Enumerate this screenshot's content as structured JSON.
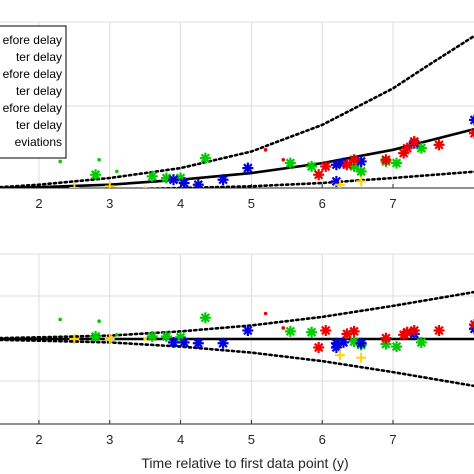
{
  "chart_data": [
    {
      "type": "scatter",
      "title": "",
      "xlabel": "",
      "ylabel": "",
      "xlim": [
        1.45,
        8.2
      ],
      "ylim": [
        0,
        1.0
      ],
      "xticks": [
        2,
        3,
        4,
        5,
        6,
        7
      ],
      "grid": true,
      "legend_position": "top-left (clipped)",
      "legend": [
        "efore delay",
        "ter delay",
        "efore delay",
        "ter delay",
        "efore delay",
        "ter delay",
        "eviations"
      ],
      "series": [
        {
          "color": "#00cc00",
          "marker": "asterisk",
          "points": [
            [
              2.8,
              0.08
            ],
            [
              3.6,
              0.07
            ],
            [
              3.8,
              0.06
            ],
            [
              4.0,
              0.06
            ],
            [
              4.35,
              0.18
            ],
            [
              5.55,
              0.15
            ],
            [
              5.85,
              0.13
            ],
            [
              6.45,
              0.13
            ],
            [
              6.55,
              0.1
            ],
            [
              6.9,
              0.16
            ],
            [
              7.05,
              0.15
            ],
            [
              7.4,
              0.24
            ]
          ]
        },
        {
          "color": "#00cc00",
          "marker": "dot",
          "points": [
            [
              2.3,
              0.16
            ],
            [
              2.85,
              0.17
            ],
            [
              3.1,
              0.1
            ]
          ]
        },
        {
          "color": "#0000dd",
          "marker": "asterisk",
          "points": [
            [
              3.9,
              0.05
            ],
            [
              4.05,
              0.03
            ],
            [
              4.25,
              0.02
            ],
            [
              4.6,
              0.05
            ],
            [
              4.95,
              0.12
            ],
            [
              6.2,
              0.14
            ],
            [
              6.3,
              0.15
            ],
            [
              6.55,
              0.16
            ],
            [
              7.3,
              0.27
            ],
            [
              8.15,
              0.41
            ],
            [
              6.2,
              0.04
            ]
          ]
        },
        {
          "color": "#ee0000",
          "marker": "asterisk",
          "points": [
            [
              6.05,
              0.13
            ],
            [
              6.35,
              0.14
            ],
            [
              6.45,
              0.17
            ],
            [
              6.9,
              0.17
            ],
            [
              7.15,
              0.21
            ],
            [
              7.2,
              0.24
            ],
            [
              7.3,
              0.28
            ],
            [
              7.65,
              0.26
            ],
            [
              8.15,
              0.33
            ],
            [
              5.95,
              0.08
            ]
          ]
        },
        {
          "color": "#ee0000",
          "marker": "dot",
          "points": [
            [
              5.2,
              0.23
            ],
            [
              5.45,
              0.17
            ]
          ]
        },
        {
          "color": "#ffd400",
          "marker": "plus",
          "points": [
            [
              2.5,
              0.0
            ],
            [
              3.0,
              0.01
            ],
            [
              6.25,
              0.02
            ],
            [
              6.55,
              0.04
            ]
          ]
        },
        {
          "color": "#ffd400",
          "marker": "dot",
          "points": [
            [
              3.5,
              0.0
            ]
          ]
        }
      ],
      "lines": [
        {
          "name": "fit",
          "style": "solid",
          "points": [
            [
              1.45,
              0.0
            ],
            [
              2,
              0.005
            ],
            [
              3,
              0.02
            ],
            [
              4,
              0.05
            ],
            [
              5,
              0.09
            ],
            [
              6,
              0.15
            ],
            [
              7,
              0.23
            ],
            [
              8.2,
              0.36
            ]
          ]
        },
        {
          "name": "upper",
          "style": "dotted",
          "points": [
            [
              1.45,
              0.005
            ],
            [
              2,
              0.02
            ],
            [
              3,
              0.06
            ],
            [
              4,
              0.12
            ],
            [
              5,
              0.22
            ],
            [
              6,
              0.38
            ],
            [
              7,
              0.6
            ],
            [
              7.5,
              0.74
            ],
            [
              8.2,
              0.93
            ]
          ]
        },
        {
          "name": "lower",
          "style": "dotted",
          "points": [
            [
              1.45,
              -0.005
            ],
            [
              2,
              -0.01
            ],
            [
              3,
              -0.01
            ],
            [
              4,
              0.0
            ],
            [
              5,
              0.01
            ],
            [
              6,
              0.03
            ],
            [
              7,
              0.06
            ],
            [
              8.2,
              0.1
            ]
          ]
        }
      ]
    },
    {
      "type": "scatter",
      "title": "",
      "xlabel": "Time relative to first data point (y)",
      "ylabel": "",
      "xlim": [
        1.45,
        8.2
      ],
      "ylim": [
        -1.0,
        1.0
      ],
      "xticks": [
        2,
        3,
        4,
        5,
        6,
        7
      ],
      "grid": true,
      "series": [
        {
          "color": "#00cc00",
          "marker": "asterisk",
          "points": [
            [
              2.8,
              0.03
            ],
            [
              3.6,
              0.03
            ],
            [
              3.8,
              0.03
            ],
            [
              4.0,
              0.02
            ],
            [
              4.35,
              0.25
            ],
            [
              5.55,
              0.09
            ],
            [
              5.85,
              0.08
            ],
            [
              6.45,
              -0.03
            ],
            [
              6.55,
              -0.07
            ],
            [
              6.9,
              -0.06
            ],
            [
              7.05,
              -0.09
            ],
            [
              7.4,
              -0.04
            ]
          ]
        },
        {
          "color": "#00cc00",
          "marker": "dot",
          "points": [
            [
              2.3,
              0.23
            ],
            [
              2.85,
              0.21
            ],
            [
              3.1,
              0.05
            ]
          ]
        },
        {
          "color": "#0000dd",
          "marker": "asterisk",
          "points": [
            [
              3.9,
              -0.04
            ],
            [
              4.05,
              -0.04
            ],
            [
              4.25,
              -0.05
            ],
            [
              4.6,
              -0.05
            ],
            [
              4.95,
              0.1
            ],
            [
              6.2,
              -0.05
            ],
            [
              6.3,
              -0.04
            ],
            [
              6.55,
              -0.05
            ],
            [
              7.3,
              0.06
            ],
            [
              8.15,
              0.12
            ],
            [
              6.2,
              -0.1
            ]
          ]
        },
        {
          "color": "#ee0000",
          "marker": "asterisk",
          "points": [
            [
              6.05,
              0.1
            ],
            [
              6.35,
              0.06
            ],
            [
              6.45,
              0.09
            ],
            [
              6.9,
              0.01
            ],
            [
              7.15,
              0.05
            ],
            [
              7.2,
              0.08
            ],
            [
              7.3,
              0.1
            ],
            [
              7.65,
              0.1
            ],
            [
              8.15,
              0.17
            ],
            [
              5.95,
              -0.1
            ]
          ]
        },
        {
          "color": "#ee0000",
          "marker": "dot",
          "points": [
            [
              5.2,
              0.3
            ],
            [
              5.45,
              0.13
            ]
          ]
        },
        {
          "color": "#ffd400",
          "marker": "plus",
          "points": [
            [
              2.5,
              0.0
            ],
            [
              3.0,
              0.0
            ],
            [
              6.25,
              -0.19
            ],
            [
              6.55,
              -0.22
            ]
          ]
        },
        {
          "color": "#ffd400",
          "marker": "dot",
          "points": [
            [
              3.5,
              0.0
            ]
          ]
        }
      ],
      "lines": [
        {
          "name": "fit",
          "style": "solid",
          "points": [
            [
              1.45,
              0.0
            ],
            [
              8.2,
              0.0
            ]
          ]
        },
        {
          "name": "upper",
          "style": "dotted",
          "points": [
            [
              1.45,
              0.01
            ],
            [
              2,
              0.02
            ],
            [
              3,
              0.04
            ],
            [
              4,
              0.09
            ],
            [
              5,
              0.16
            ],
            [
              6,
              0.26
            ],
            [
              7,
              0.39
            ],
            [
              8.2,
              0.56
            ]
          ]
        },
        {
          "name": "lower",
          "style": "dotted",
          "points": [
            [
              1.45,
              -0.01
            ],
            [
              2,
              -0.02
            ],
            [
              3,
              -0.04
            ],
            [
              4,
              -0.09
            ],
            [
              5,
              -0.16
            ],
            [
              6,
              -0.26
            ],
            [
              7,
              -0.39
            ],
            [
              8.2,
              -0.56
            ]
          ]
        }
      ]
    }
  ]
}
